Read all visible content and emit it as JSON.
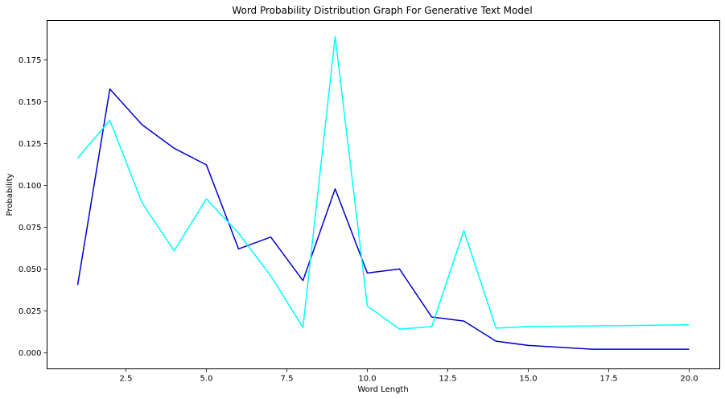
{
  "chart_data": {
    "type": "line",
    "title": "Word Probability Distribution Graph For Generative Text Model",
    "xlabel": "Word Length",
    "ylabel": "Probability",
    "xlim": [
      0.05,
      20.95
    ],
    "ylim": [
      -0.0095,
      0.1985
    ],
    "x_ticks": [
      2.5,
      5.0,
      7.5,
      10.0,
      12.5,
      15.0,
      17.5,
      20.0
    ],
    "x_tick_labels": [
      "2.5",
      "5.0",
      "7.5",
      "10.0",
      "12.5",
      "15.0",
      "17.5",
      "20.0"
    ],
    "y_ticks": [
      0.0,
      0.025,
      0.05,
      0.075,
      0.1,
      0.125,
      0.15,
      0.175
    ],
    "y_tick_labels": [
      "0.000",
      "0.025",
      "0.050",
      "0.075",
      "0.100",
      "0.125",
      "0.150",
      "0.175"
    ],
    "grid": false,
    "series": [
      {
        "color": "#0000cd",
        "points": [
          [
            1,
            0.0405
          ],
          [
            2,
            0.1576
          ],
          [
            3,
            0.1363
          ],
          [
            4,
            0.1222
          ],
          [
            5,
            0.1123
          ],
          [
            6,
            0.0621
          ],
          [
            7,
            0.0692
          ],
          [
            8,
            0.0432
          ],
          [
            9,
            0.098
          ],
          [
            10,
            0.0477
          ],
          [
            11,
            0.0501
          ],
          [
            12,
            0.0215
          ],
          [
            13,
            0.019
          ],
          [
            14,
            0.007
          ],
          [
            15,
            0.0045
          ],
          [
            17,
            0.0022
          ],
          [
            20,
            0.0022
          ]
        ]
      },
      {
        "color": "#00ffff",
        "points": [
          [
            1,
            0.1163
          ],
          [
            2,
            0.1389
          ],
          [
            3,
            0.0897
          ],
          [
            4,
            0.061
          ],
          [
            5,
            0.092
          ],
          [
            6,
            0.0715
          ],
          [
            7,
            0.046
          ],
          [
            8,
            0.0152
          ],
          [
            9,
            0.189
          ],
          [
            10,
            0.028
          ],
          [
            11,
            0.0142
          ],
          [
            12,
            0.0157
          ],
          [
            13,
            0.073
          ],
          [
            14,
            0.0148
          ],
          [
            15,
            0.0157
          ],
          [
            20,
            0.0168
          ]
        ]
      }
    ]
  }
}
